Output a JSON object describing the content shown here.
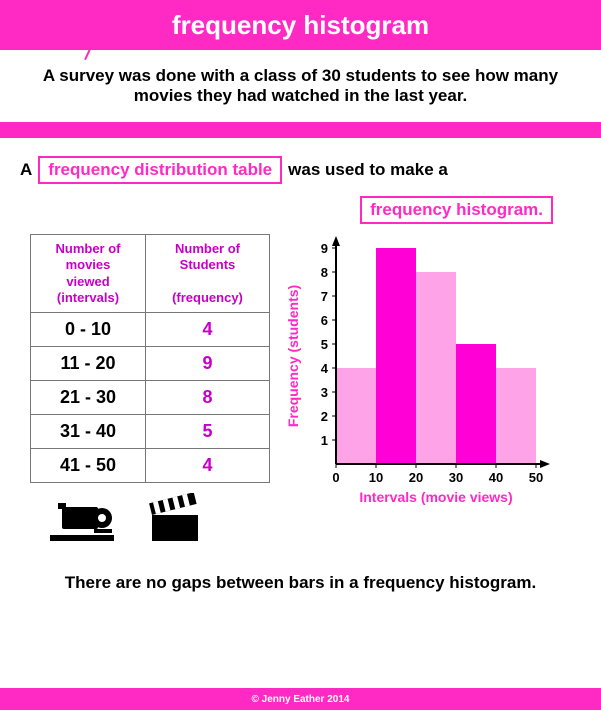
{
  "title": "frequency histogram",
  "intro": "A survey was done with a class of 30 students to see how many movies they had watched in the last year.",
  "sentence": {
    "prefix": "A",
    "boxed1": "frequency distribution table",
    "mid": "was used to make a",
    "boxed2": "frequency histogram."
  },
  "table": {
    "headers": {
      "col1_line1": "Number of",
      "col1_line2": "movies",
      "col1_line3": "viewed",
      "col1_line4": "(intervals)",
      "col2_line1": "Number of",
      "col2_line2": "Students",
      "col2_line3": "(frequency)"
    },
    "rows": [
      {
        "interval": "0 - 10",
        "frequency": "4"
      },
      {
        "interval": "11 - 20",
        "frequency": "9"
      },
      {
        "interval": "21 - 30",
        "frequency": "8"
      },
      {
        "interval": "31 - 40",
        "frequency": "5"
      },
      {
        "interval": "41 - 50",
        "frequency": "4"
      }
    ]
  },
  "chart": {
    "type": "histogram",
    "ylabel": "Frequency (students)",
    "xlabel": "Intervals (movie views)",
    "x_ticks": [
      "0",
      "10",
      "20",
      "30",
      "40",
      "50"
    ],
    "y_ticks": [
      "1",
      "2",
      "3",
      "4",
      "5",
      "6",
      "7",
      "8",
      "9"
    ],
    "ymax": 9,
    "bars": [
      {
        "value": 4,
        "color": "#ffa3e8"
      },
      {
        "value": 9,
        "color": "#ff00d6"
      },
      {
        "value": 8,
        "color": "#ffa3e8"
      },
      {
        "value": 5,
        "color": "#ff00d6"
      },
      {
        "value": 4,
        "color": "#ffa3e8"
      }
    ],
    "axis_color": "#000000",
    "label_color": "#ff29c3",
    "tick_color": "#000000",
    "tick_fontsize": 13,
    "label_fontsize": 14
  },
  "bottom_note": "There are no gaps between bars in a frequency histogram.",
  "footer": "© Jenny Eather 2014"
}
